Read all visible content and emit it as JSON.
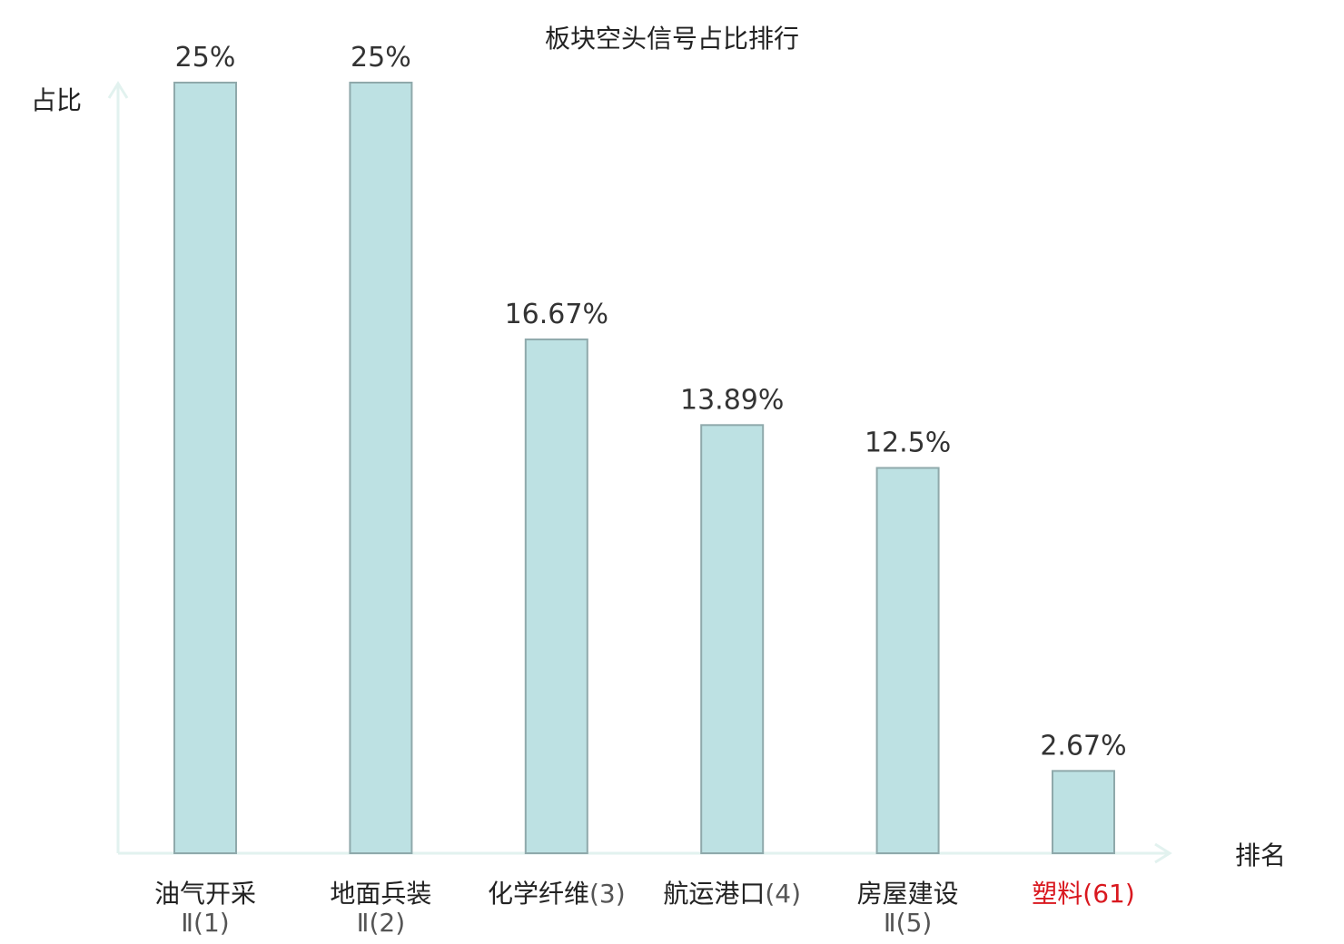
{
  "chart_data": {
    "type": "bar",
    "title": "板块空头信号占比排行",
    "ylabel": "占比",
    "xlabel": "排名",
    "ylim": [
      0,
      25
    ],
    "grid": false,
    "bar_color": "#bde1e3",
    "bar_stroke": "#8fa9ab",
    "axis_color": "#e2f2ef",
    "highlight_color": "#d9181f",
    "text_color": "#222222",
    "values": [
      25,
      25,
      16.67,
      13.89,
      12.5,
      2.67
    ],
    "value_labels": [
      "25%",
      "25%",
      "16.67%",
      "13.89%",
      "12.5%",
      "2.67%"
    ],
    "categories": [
      {
        "name": "油气开采",
        "rank": "Ⅱ(1)",
        "highlight": false
      },
      {
        "name": "地面兵装",
        "rank": "Ⅱ(2)",
        "highlight": false
      },
      {
        "name": "化学纤维",
        "rank": "(3)",
        "highlight": false
      },
      {
        "name": "航运港口",
        "rank": "(4)",
        "highlight": false
      },
      {
        "name": "房屋建设",
        "rank": "Ⅱ(5)",
        "highlight": false
      },
      {
        "name": "塑料",
        "rank": "(61)",
        "highlight": true
      }
    ]
  }
}
